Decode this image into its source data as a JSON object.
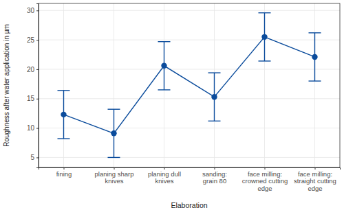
{
  "chart_data": {
    "type": "line",
    "x_label": "Elaboration",
    "y_label": "Roughness after water application in µm",
    "categories": [
      "fining",
      "planing sharp\nknives",
      "planing dull\nknives",
      "sanding:\ngrain 80",
      "face milling:\ncrowned cutting\nedge",
      "face milling:\nstraight cutting\nedge"
    ],
    "values": [
      12.3,
      9.1,
      20.6,
      15.3,
      25.5,
      22.1
    ],
    "errors": [
      4.1,
      4.1,
      4.1,
      4.1,
      4.1,
      4.1
    ],
    "color": "#0b4c9c",
    "marker": "circle",
    "ylim": [
      3.3,
      31.2
    ],
    "yticks": [
      5,
      10,
      15,
      20,
      25,
      30
    ],
    "grid": true
  }
}
